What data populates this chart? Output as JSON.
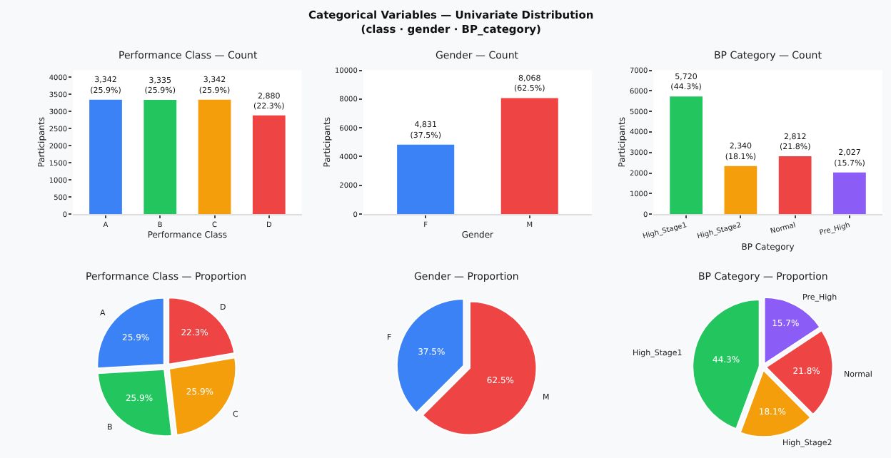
{
  "chart_data": [
    {
      "type": "bar",
      "title": "Performance Class — Count",
      "xlabel": "Performance Class",
      "ylabel": "Participants",
      "categories": [
        "A",
        "B",
        "C",
        "D"
      ],
      "values": [
        3342,
        3335,
        3342,
        2880
      ],
      "colors": [
        "#3b82f6",
        "#22c55e",
        "#f59e0b",
        "#ef4444"
      ],
      "value_labels": [
        "3,342\n(25.9%)",
        "3,335\n(25.9%)",
        "3,342\n(25.9%)",
        "2,880\n(22.3%)"
      ],
      "ylim": [
        0,
        4200
      ],
      "yticks": [
        0,
        500,
        1000,
        1500,
        2000,
        2500,
        3000,
        3500,
        4000
      ],
      "grid": false,
      "annotations": [
        "Categorical Variables — Univariate Distribution\n(class · gender · BP_category)"
      ]
    },
    {
      "type": "bar",
      "title": "Gender — Count",
      "xlabel": "Gender",
      "ylabel": "Participants",
      "categories": [
        "F",
        "M"
      ],
      "values": [
        4831,
        8068
      ],
      "colors": [
        "#3b82f6",
        "#ef4444"
      ],
      "value_labels": [
        "4,831\n(37.5%)",
        "8,068\n(62.5%)"
      ],
      "ylim": [
        0,
        10000
      ],
      "yticks": [
        0,
        2000,
        4000,
        6000,
        8000,
        10000
      ],
      "grid": false
    },
    {
      "type": "bar",
      "title": "BP Category — Count",
      "xlabel": "BP Category",
      "ylabel": "Participants",
      "categories": [
        "High_Stage1",
        "High_Stage2",
        "Normal",
        "Pre_High"
      ],
      "values": [
        5720,
        2340,
        2812,
        2027
      ],
      "colors": [
        "#22c55e",
        "#f59e0b",
        "#ef4444",
        "#8b5cf6"
      ],
      "value_labels": [
        "5,720\n(44.3%)",
        "2,340\n(18.1%)",
        "2,812\n(21.8%)",
        "2,027\n(15.7%)"
      ],
      "ylim": [
        0,
        7000
      ],
      "yticks": [
        0,
        1000,
        2000,
        3000,
        4000,
        5000,
        6000,
        7000
      ],
      "grid": false
    },
    {
      "type": "pie",
      "title": "Performance Class — Proportion",
      "categories": [
        "A",
        "B",
        "C",
        "D"
      ],
      "values": [
        25.9,
        25.9,
        25.9,
        22.3
      ],
      "colors": [
        "#3b82f6",
        "#22c55e",
        "#f59e0b",
        "#ef4444"
      ],
      "value_labels": [
        "25.9%",
        "25.9%",
        "25.9%",
        "22.3%"
      ]
    },
    {
      "type": "pie",
      "title": "Gender — Proportion",
      "categories": [
        "F",
        "M"
      ],
      "values": [
        37.5,
        62.5
      ],
      "colors": [
        "#3b82f6",
        "#ef4444"
      ],
      "value_labels": [
        "37.5%",
        "62.5%"
      ]
    },
    {
      "type": "pie",
      "title": "BP Category — Proportion",
      "categories": [
        "High_Stage1",
        "High_Stage2",
        "Normal",
        "Pre_High"
      ],
      "values": [
        44.3,
        18.1,
        21.8,
        15.7
      ],
      "colors": [
        "#22c55e",
        "#f59e0b",
        "#ef4444",
        "#8b5cf6"
      ],
      "value_labels": [
        "44.3%",
        "18.1%",
        "21.8%",
        "15.7%"
      ]
    }
  ]
}
